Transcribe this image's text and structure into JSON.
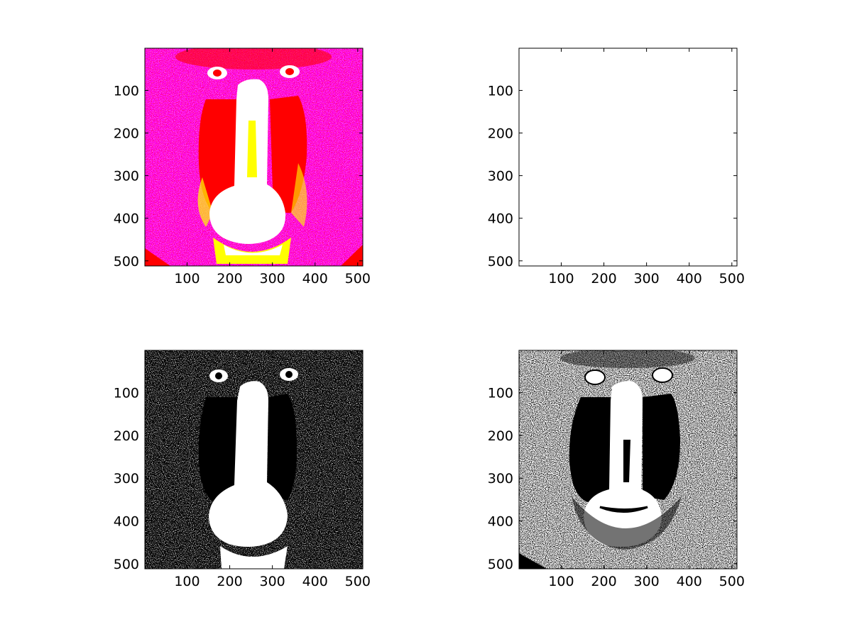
{
  "chart_data": [
    {
      "type": "heatmap",
      "id": "top-left",
      "description_colors": [
        "#ff00ff",
        "#ff0000",
        "#ffff00",
        "#ffffff"
      ],
      "xlim": [
        1,
        512
      ],
      "ylim": [
        512,
        1
      ],
      "xticks": [
        100,
        200,
        300,
        400,
        500
      ],
      "yticks": [
        100,
        200,
        300,
        400,
        500
      ],
      "grid": false
    },
    {
      "type": "heatmap",
      "id": "top-right",
      "description_colors": [
        "#ffffff"
      ],
      "xlim": [
        1,
        512
      ],
      "ylim": [
        512,
        1
      ],
      "xticks": [
        100,
        200,
        300,
        400,
        500
      ],
      "yticks": [
        100,
        200,
        300,
        400,
        500
      ],
      "grid": false
    },
    {
      "type": "heatmap",
      "id": "bottom-left",
      "description_colors": [
        "#000000",
        "#ffffff"
      ],
      "xlim": [
        1,
        512
      ],
      "ylim": [
        512,
        1
      ],
      "xticks": [
        100,
        200,
        300,
        400,
        500
      ],
      "yticks": [
        100,
        200,
        300,
        400,
        500
      ],
      "grid": false
    },
    {
      "type": "heatmap",
      "id": "bottom-right",
      "description_colors": [
        "#ffffff",
        "#000000"
      ],
      "xlim": [
        1,
        512
      ],
      "ylim": [
        512,
        1
      ],
      "xticks": [
        100,
        200,
        300,
        400,
        500
      ],
      "yticks": [
        100,
        200,
        300,
        400,
        500
      ],
      "grid": false
    }
  ]
}
